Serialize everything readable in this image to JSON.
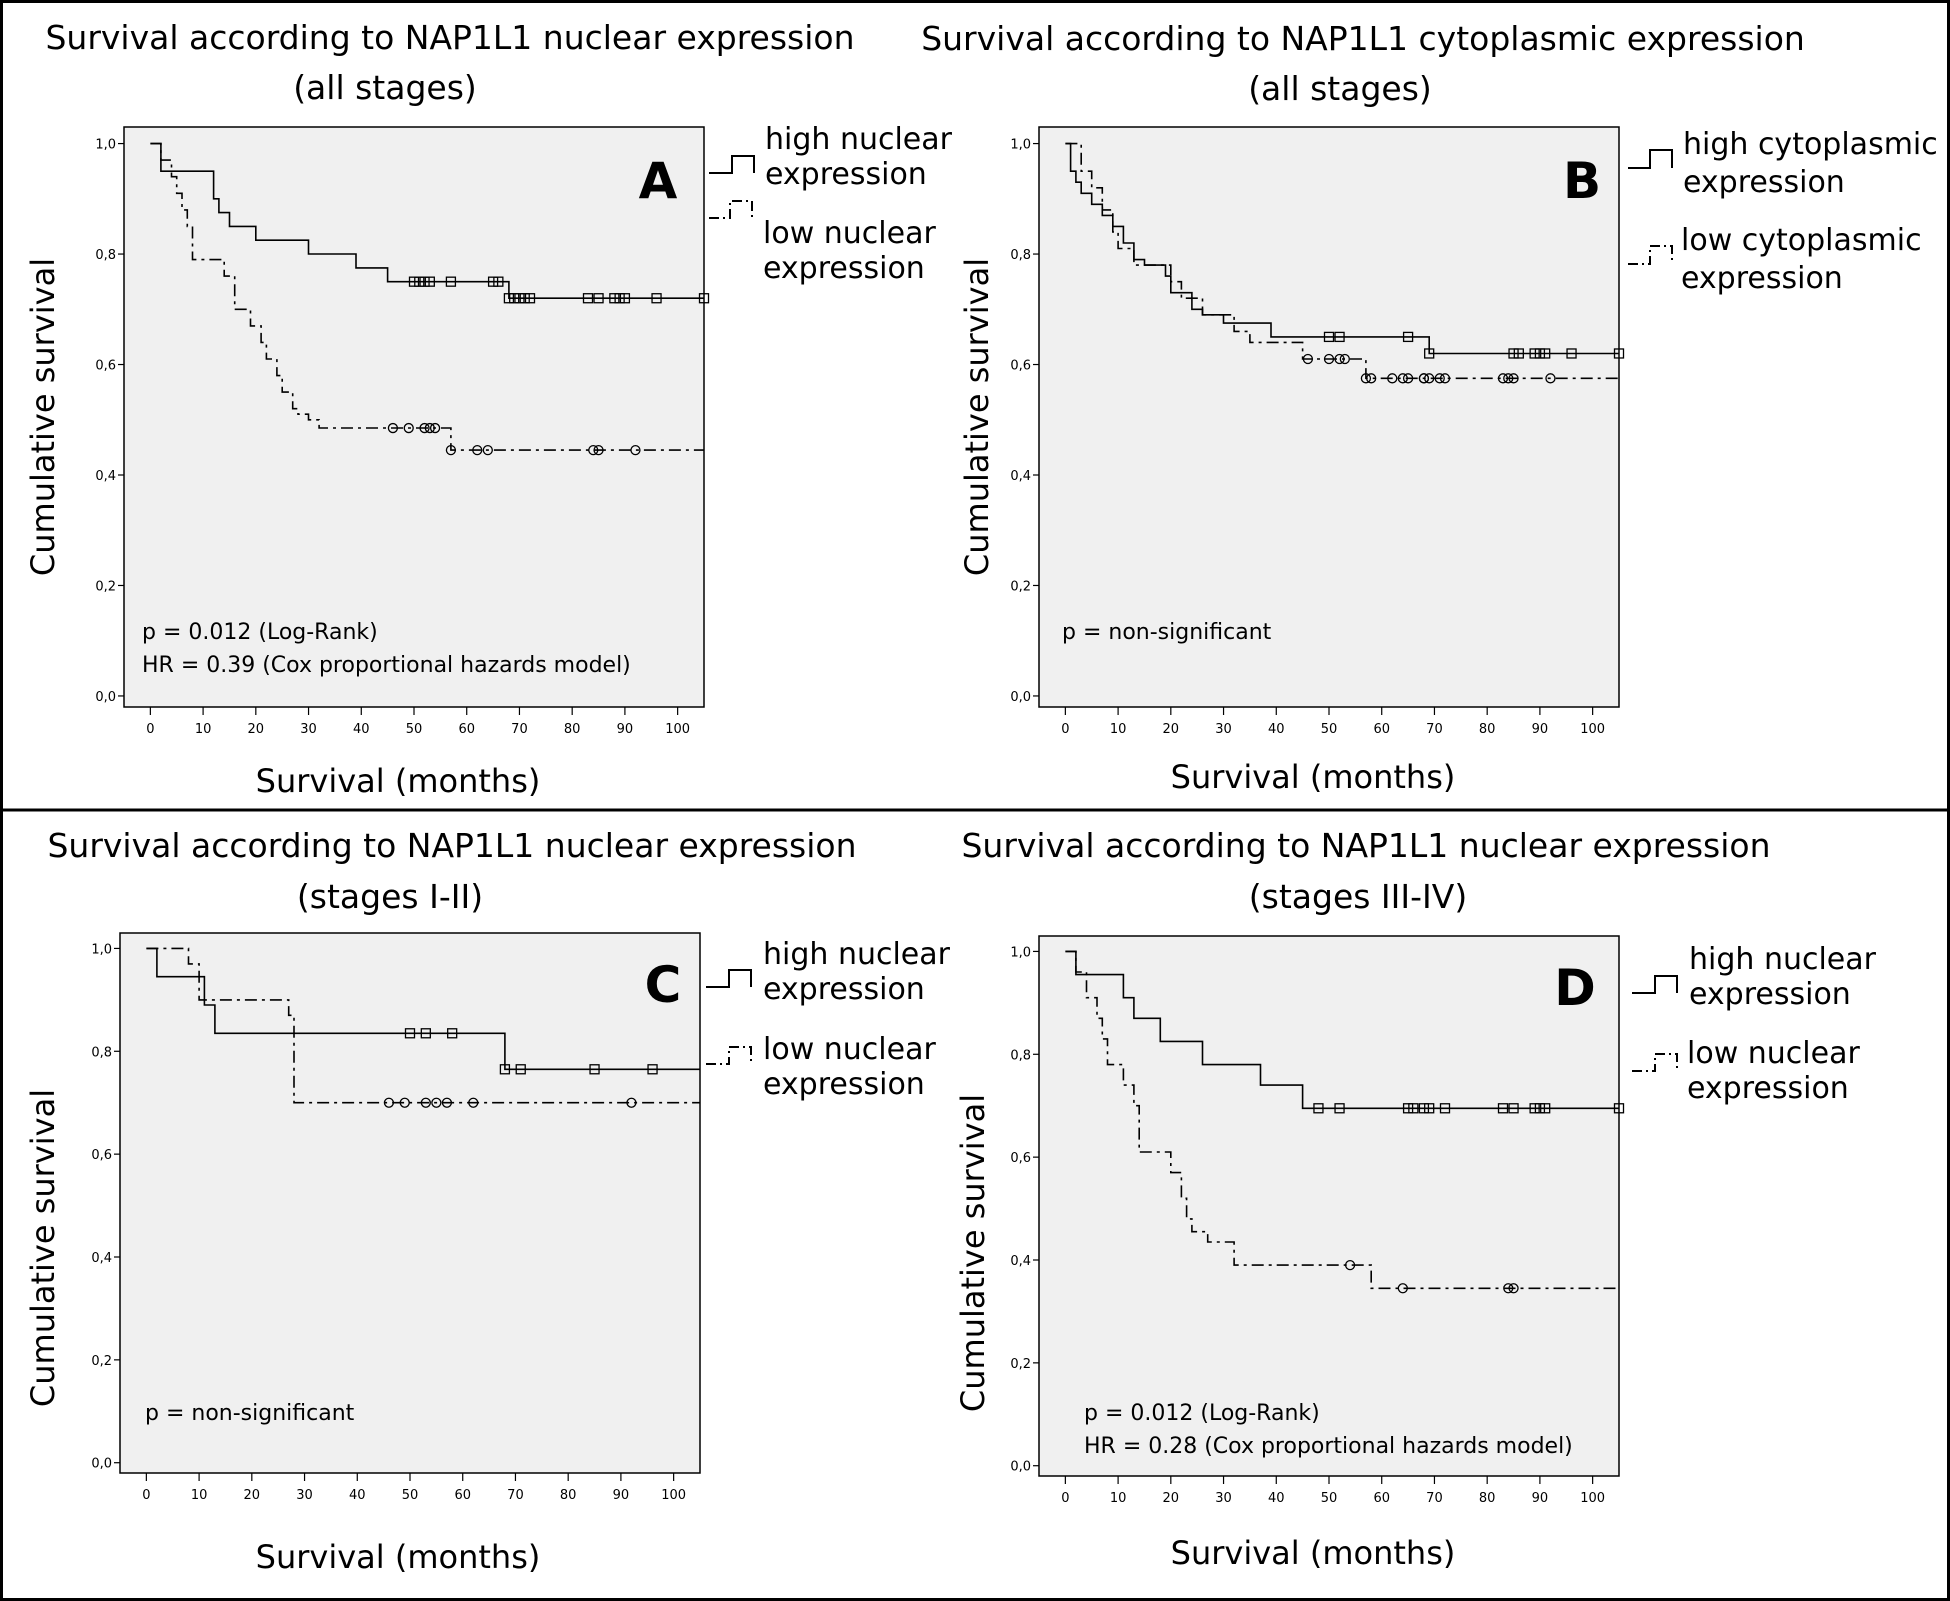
{
  "chart_data": [
    {
      "id": "A",
      "type": "line",
      "subtype": "kaplan-meier",
      "title": "Survival according to NAP1L1 nuclear expression",
      "subtitle": "(all stages)",
      "panel_letter": "A",
      "xlabel": "Survival (months)",
      "ylabel": "Cumulative survival",
      "xlim": [
        -5,
        105
      ],
      "ylim": [
        -0.02,
        1.03
      ],
      "x_ticks": [
        0,
        10,
        20,
        30,
        40,
        50,
        60,
        70,
        80,
        90,
        100
      ],
      "x_tick_labels": [
        "0",
        "10",
        "20",
        "30",
        "40",
        "50",
        "60",
        "70",
        "80",
        "90",
        "100"
      ],
      "y_ticks": [
        0,
        0.2,
        0.4,
        0.6,
        0.8,
        1.0
      ],
      "y_tick_labels": [
        "0,0",
        "0,2",
        "0,4",
        "0,6",
        "0,8",
        "1,0"
      ],
      "annotations": [
        "p = 0.012 (Log-Rank)",
        "HR = 0.39 (Cox proportional hazards model)"
      ],
      "legend": [
        "high nuclear expression",
        "low nuclear expression"
      ],
      "series": [
        {
          "name": "high nuclear expression",
          "style": "solid",
          "marker": "square",
          "x": [
            0,
            2,
            11,
            12,
            13,
            15,
            20,
            30,
            39,
            45,
            65,
            68,
            105
          ],
          "y": [
            1.0,
            0.95,
            0.95,
            0.9,
            0.875,
            0.85,
            0.825,
            0.8,
            0.775,
            0.75,
            0.75,
            0.72,
            0.72
          ],
          "censored": [
            50,
            51,
            52,
            53,
            57,
            65,
            66,
            68,
            69,
            70,
            71,
            72,
            83,
            85,
            88,
            89,
            90,
            96,
            105
          ]
        },
        {
          "name": "low nuclear expression",
          "style": "dashdot",
          "marker": "circle",
          "x": [
            0,
            2,
            4,
            5,
            6,
            7,
            8,
            14,
            16,
            19,
            21,
            22,
            24,
            25,
            27,
            28,
            30,
            32,
            53,
            57,
            105
          ],
          "y": [
            1.0,
            0.97,
            0.94,
            0.91,
            0.88,
            0.85,
            0.79,
            0.76,
            0.7,
            0.67,
            0.64,
            0.61,
            0.58,
            0.55,
            0.52,
            0.51,
            0.5,
            0.485,
            0.485,
            0.445,
            0.445
          ],
          "censored": [
            46,
            49,
            52,
            53,
            54,
            57,
            62,
            64,
            84,
            85,
            92
          ]
        }
      ]
    },
    {
      "id": "B",
      "type": "line",
      "subtype": "kaplan-meier",
      "title": "Survival according to NAP1L1 cytoplasmic expression",
      "subtitle": "(all stages)",
      "panel_letter": "B",
      "xlabel": "Survival (months)",
      "ylabel": "Cumulative survival",
      "xlim": [
        -5,
        105
      ],
      "ylim": [
        -0.02,
        1.03
      ],
      "x_ticks": [
        0,
        10,
        20,
        30,
        40,
        50,
        60,
        70,
        80,
        90,
        100
      ],
      "x_tick_labels": [
        "0",
        "10",
        "20",
        "30",
        "40",
        "50",
        "60",
        "70",
        "80",
        "90",
        "100"
      ],
      "y_ticks": [
        0,
        0.2,
        0.4,
        0.6,
        0.8,
        1.0
      ],
      "y_tick_labels": [
        "0,0",
        "0,2",
        "0,4",
        "0,6",
        "0,8",
        "1,0"
      ],
      "annotations": [
        "p = non-significant"
      ],
      "legend": [
        "high cytoplasmic expression",
        "low cytoplasmic expression"
      ],
      "series": [
        {
          "name": "high cytoplasmic expression",
          "style": "solid",
          "marker": "square",
          "x": [
            0,
            1,
            2,
            3,
            5,
            7,
            9,
            11,
            13,
            15,
            19,
            20,
            24,
            26,
            30,
            39,
            45,
            65,
            69,
            105
          ],
          "y": [
            1.0,
            0.95,
            0.93,
            0.91,
            0.89,
            0.87,
            0.85,
            0.82,
            0.79,
            0.78,
            0.76,
            0.73,
            0.7,
            0.69,
            0.675,
            0.65,
            0.65,
            0.65,
            0.62,
            0.62
          ],
          "censored": [
            50,
            52,
            65,
            69,
            85,
            86,
            89,
            90,
            91,
            96,
            105
          ]
        },
        {
          "name": "low cytoplasmic expression",
          "style": "dashdot",
          "marker": "circle",
          "x": [
            0,
            3,
            5,
            7,
            9,
            10,
            13,
            16,
            20,
            22,
            26,
            32,
            35,
            45,
            54,
            57,
            105
          ],
          "y": [
            1.0,
            0.95,
            0.92,
            0.88,
            0.84,
            0.81,
            0.78,
            0.78,
            0.75,
            0.72,
            0.69,
            0.66,
            0.64,
            0.61,
            0.61,
            0.575,
            0.575
          ],
          "censored": [
            46,
            50,
            52,
            53,
            57,
            58,
            62,
            64,
            65,
            68,
            68,
            69,
            71,
            72,
            83,
            84,
            85,
            92
          ]
        }
      ]
    },
    {
      "id": "C",
      "type": "line",
      "subtype": "kaplan-meier",
      "title": "Survival according to NAP1L1 nuclear expression",
      "subtitle": "(stages I-II)",
      "panel_letter": "C",
      "xlabel": "Survival (months)",
      "ylabel": "Cumulative survival",
      "xlim": [
        -5,
        105
      ],
      "ylim": [
        -0.02,
        1.03
      ],
      "x_ticks": [
        0,
        10,
        20,
        30,
        40,
        50,
        60,
        70,
        80,
        90,
        100
      ],
      "x_tick_labels": [
        "0",
        "10",
        "20",
        "30",
        "40",
        "50",
        "60",
        "70",
        "80",
        "90",
        "100"
      ],
      "y_ticks": [
        0,
        0.2,
        0.4,
        0.6,
        0.8,
        1.0
      ],
      "y_tick_labels": [
        "0,0",
        "0,2",
        "0,4",
        "0,6",
        "0,8",
        "1,0"
      ],
      "annotations": [
        "p = non-significant"
      ],
      "legend": [
        "high nuclear expression",
        "low nuclear expression"
      ],
      "series": [
        {
          "name": "high nuclear expression",
          "style": "solid",
          "marker": "square",
          "x": [
            0,
            2,
            11,
            13,
            68,
            105
          ],
          "y": [
            1.0,
            0.945,
            0.89,
            0.835,
            0.765,
            0.765
          ],
          "censored": [
            50,
            53,
            58,
            68,
            71,
            85,
            96
          ]
        },
        {
          "name": "low nuclear expression",
          "style": "dashdot",
          "marker": "circle",
          "x": [
            0,
            8,
            10,
            27,
            28,
            105
          ],
          "y": [
            1.0,
            0.97,
            0.9,
            0.87,
            0.7,
            0.7
          ],
          "censored": [
            46,
            49,
            53,
            55,
            57,
            62,
            92
          ]
        }
      ]
    },
    {
      "id": "D",
      "type": "line",
      "subtype": "kaplan-meier",
      "title": "Survival according to NAP1L1 nuclear expression",
      "subtitle": "(stages III-IV)",
      "panel_letter": "D",
      "xlabel": "Survival (months)",
      "ylabel": "Cumulative survival",
      "xlim": [
        -5,
        105
      ],
      "ylim": [
        -0.02,
        1.03
      ],
      "x_ticks": [
        0,
        10,
        20,
        30,
        40,
        50,
        60,
        70,
        80,
        90,
        100
      ],
      "x_tick_labels": [
        "0",
        "10",
        "20",
        "30",
        "40",
        "50",
        "60",
        "70",
        "80",
        "90",
        "100"
      ],
      "y_ticks": [
        0,
        0.2,
        0.4,
        0.6,
        0.8,
        1.0
      ],
      "y_tick_labels": [
        "0,0",
        "0,2",
        "0,4",
        "0,6",
        "0,8",
        "1,0"
      ],
      "annotations": [
        "p = 0.012 (Log-Rank)",
        "HR = 0.28 (Cox proportional hazards model)"
      ],
      "legend": [
        "high nuclear expression",
        "low nuclear expression"
      ],
      "series": [
        {
          "name": "high nuclear expression",
          "style": "solid",
          "marker": "square",
          "x": [
            0,
            2,
            11,
            13,
            18,
            26,
            37,
            45,
            105
          ],
          "y": [
            1.0,
            0.955,
            0.91,
            0.87,
            0.825,
            0.78,
            0.74,
            0.695,
            0.695
          ],
          "censored": [
            48,
            52,
            65,
            66,
            68,
            69,
            72,
            83,
            85,
            89,
            90,
            91,
            105
          ]
        },
        {
          "name": "low nuclear expression",
          "style": "dashdot",
          "marker": "circle",
          "x": [
            0,
            2,
            4,
            6,
            7,
            8,
            11,
            13,
            14,
            19,
            20,
            22,
            23,
            24,
            27,
            32,
            54,
            58,
            105
          ],
          "y": [
            1.0,
            0.96,
            0.91,
            0.87,
            0.83,
            0.78,
            0.74,
            0.7,
            0.61,
            0.61,
            0.57,
            0.52,
            0.48,
            0.455,
            0.435,
            0.39,
            0.39,
            0.345,
            0.345
          ],
          "censored": [
            54,
            64,
            84,
            85
          ]
        }
      ]
    }
  ]
}
